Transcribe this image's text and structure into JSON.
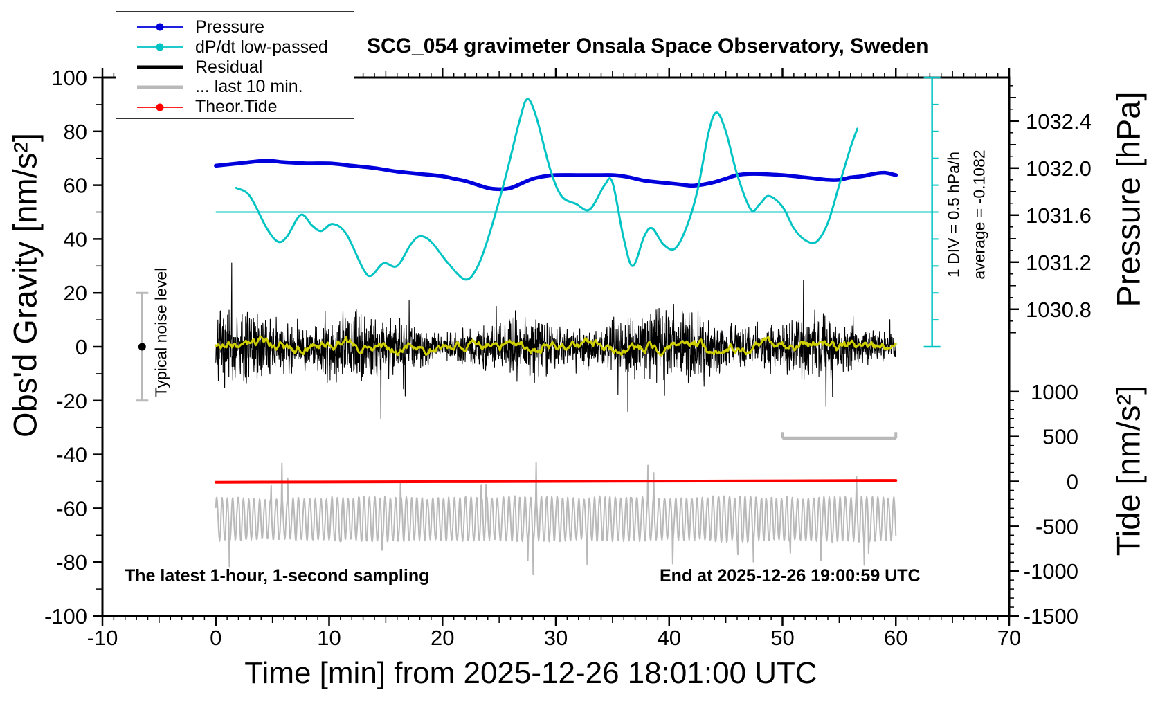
{
  "annotations": {
    "sampling_note": "The latest 1-hour, 1-second sampling",
    "end_note": "End at 2025-12-26 19:00:59 UTC",
    "div_note": "1 DIV = 0.5 hPa/h",
    "average_note": "average = -0.1082",
    "noise_label": "Typical noise level"
  },
  "legend": {
    "items": [
      {
        "label": "Pressure",
        "color": "#0000dd",
        "style": "line-dot"
      },
      {
        "label": "dP/dt low-passed",
        "color": "#00c3c3",
        "style": "line-dot"
      },
      {
        "label": "Residual",
        "color": "#000000",
        "style": "thick-line"
      },
      {
        "label": "... last 10 min.",
        "color": "#b9b9b9",
        "style": "thick-line"
      },
      {
        "label": "Theor.Tide",
        "color": "#ff0000",
        "style": "line-dot"
      }
    ]
  },
  "chart_data": {
    "type": "line",
    "title": "SCG_054 gravimeter Onsala Space Observatory, Sweden",
    "xlabel": "Time [min] from 2025-12-26 18:01:00 UTC",
    "x_range": [
      -10,
      70
    ],
    "x_ticks": [
      -10,
      0,
      10,
      20,
      30,
      40,
      50,
      60,
      70
    ],
    "x_minor_step": 1,
    "x_medium_step": 5,
    "gravity_axis": {
      "label": "Obs'd Gravity [nm/s²]",
      "range": [
        -100,
        100
      ],
      "tick_step": 20,
      "minor_step": 10
    },
    "pressure_axis": {
      "label": "Pressure [hPa]",
      "tick_labels": [
        1030.8,
        1031.2,
        1031.6,
        1032.0,
        1032.4
      ],
      "minor_step": 0.1,
      "map": {
        "hpa": 1031.6,
        "gravity": 48.9,
        "gravity_per_hpa": 43.7
      }
    },
    "tide_axis": {
      "label": "Tide [nm/s²]",
      "tick_labels": [
        1000,
        500,
        0,
        -500,
        -1000,
        -1500
      ],
      "minor_step": 100,
      "map": {
        "tide": 0,
        "gravity": -50,
        "gravity_per_unit": 0.033333
      }
    },
    "dpdt_scale": {
      "zero_gravity": 50,
      "gravity_per_hpa_h": 20,
      "ruler_x_min": 63.2,
      "div_hpa_h": 0.5,
      "average_hpa_h": -0.1082,
      "color": "#00c3c3"
    },
    "series": [
      {
        "name": "Pressure",
        "axis": "pressure",
        "unit": "hPa",
        "color": "#0000dd",
        "width": 5.5,
        "points": [
          [
            0,
            1032.02
          ],
          [
            2,
            1032.04
          ],
          [
            4,
            1032.06
          ],
          [
            5,
            1032.06
          ],
          [
            6,
            1032.05
          ],
          [
            8,
            1032.04
          ],
          [
            10,
            1032.04
          ],
          [
            12,
            1032.02
          ],
          [
            14,
            1032.0
          ],
          [
            16,
            1031.97
          ],
          [
            18,
            1031.95
          ],
          [
            20,
            1031.93
          ],
          [
            21,
            1031.91
          ],
          [
            22,
            1031.89
          ],
          [
            23,
            1031.86
          ],
          [
            24,
            1031.83
          ],
          [
            25,
            1031.82
          ],
          [
            26,
            1031.83
          ],
          [
            27,
            1031.87
          ],
          [
            28,
            1031.91
          ],
          [
            29,
            1031.93
          ],
          [
            30,
            1031.94
          ],
          [
            32,
            1031.94
          ],
          [
            34,
            1031.94
          ],
          [
            35,
            1031.94
          ],
          [
            36,
            1031.93
          ],
          [
            37,
            1031.91
          ],
          [
            38,
            1031.89
          ],
          [
            40,
            1031.87
          ],
          [
            41,
            1031.86
          ],
          [
            42,
            1031.85
          ],
          [
            43,
            1031.86
          ],
          [
            44,
            1031.88
          ],
          [
            45,
            1031.91
          ],
          [
            46,
            1031.94
          ],
          [
            47,
            1031.95
          ],
          [
            48,
            1031.95
          ],
          [
            50,
            1031.94
          ],
          [
            52,
            1031.92
          ],
          [
            53,
            1031.91
          ],
          [
            54,
            1031.9
          ],
          [
            55,
            1031.9
          ],
          [
            56,
            1031.92
          ],
          [
            57,
            1031.93
          ],
          [
            58,
            1031.95
          ],
          [
            59,
            1031.96
          ],
          [
            60,
            1031.94
          ]
        ]
      },
      {
        "name": "dP/dt low-passed",
        "axis": "dpdt",
        "unit": "hPa/h",
        "color": "#00c3c3",
        "width": 3,
        "points": [
          [
            1.8,
            0.45
          ],
          [
            3,
            0.3
          ],
          [
            4.5,
            -0.3
          ],
          [
            5.5,
            -0.55
          ],
          [
            6.3,
            -0.45
          ],
          [
            7.5,
            -0.05
          ],
          [
            8.5,
            -0.25
          ],
          [
            9.3,
            -0.35
          ],
          [
            10.3,
            -0.22
          ],
          [
            11.5,
            -0.4
          ],
          [
            13,
            -1.05
          ],
          [
            13.7,
            -1.18
          ],
          [
            14.8,
            -0.95
          ],
          [
            16,
            -1.0
          ],
          [
            17.2,
            -0.6
          ],
          [
            18,
            -0.45
          ],
          [
            19,
            -0.55
          ],
          [
            20.5,
            -0.95
          ],
          [
            22,
            -1.25
          ],
          [
            23,
            -1.05
          ],
          [
            24,
            -0.5
          ],
          [
            25.5,
            0.6
          ],
          [
            26.8,
            1.7
          ],
          [
            27.5,
            2.1
          ],
          [
            28.3,
            1.75
          ],
          [
            29.5,
            0.8
          ],
          [
            30.5,
            0.3
          ],
          [
            31.8,
            0.15
          ],
          [
            33,
            0.05
          ],
          [
            34.3,
            0.5
          ],
          [
            35,
            0.55
          ],
          [
            36,
            -0.5
          ],
          [
            36.8,
            -1.0
          ],
          [
            37.8,
            -0.45
          ],
          [
            38.5,
            -0.3
          ],
          [
            39.5,
            -0.6
          ],
          [
            40.5,
            -0.68
          ],
          [
            41.5,
            -0.3
          ],
          [
            42.5,
            0.4
          ],
          [
            43.5,
            1.5
          ],
          [
            44.2,
            1.85
          ],
          [
            45,
            1.5
          ],
          [
            46,
            0.7
          ],
          [
            47.2,
            0.05
          ],
          [
            48,
            0.15
          ],
          [
            48.8,
            0.3
          ],
          [
            50,
            0.1
          ],
          [
            51,
            -0.3
          ],
          [
            52,
            -0.52
          ],
          [
            53,
            -0.55
          ],
          [
            54,
            -0.2
          ],
          [
            55,
            0.5
          ],
          [
            56,
            1.2
          ],
          [
            56.6,
            1.55
          ]
        ]
      },
      {
        "name": "Residual",
        "axis": "gravity",
        "unit": "nm/s²",
        "color": "#000000",
        "width": 1.1,
        "noise": {
          "type": "spiky",
          "seed": 7,
          "n": 2600,
          "x_range": [
            0,
            60
          ],
          "center": 0,
          "sigma": 8,
          "spike_prob": 0.02,
          "clip": 36
        }
      },
      {
        "name": "Residual low-passed",
        "axis": "gravity",
        "unit": "nm/s²",
        "color": "#cfcf00",
        "width": 3,
        "noise": {
          "type": "smooth",
          "seed": 3,
          "n": 700,
          "x_range": [
            0,
            60
          ],
          "center": 0,
          "amp": 2.4
        }
      },
      {
        "name": "... last 10 min.",
        "axis": "gravity",
        "unit": "nm/s²",
        "color": "#b9b9b9",
        "width": 2,
        "noise": {
          "type": "osc",
          "seed": 11,
          "n": 1400,
          "x_range": [
            0,
            60
          ],
          "center": -64,
          "base_amp": 8,
          "max_extra": 14
        }
      },
      {
        "name": "Theor.Tide",
        "axis": "tide",
        "unit": "nm/s²",
        "color": "#ff0000",
        "width": 4,
        "points": [
          [
            0,
            -9
          ],
          [
            15,
            -5
          ],
          [
            30,
            0
          ],
          [
            45,
            5
          ],
          [
            60,
            11
          ]
        ]
      }
    ],
    "noise_marker": {
      "x_min": -6.5,
      "gravity_span": [
        -20,
        20
      ],
      "dot_gravity": 0,
      "color": "#b9b9b9"
    },
    "window_bar": {
      "x_from": 50,
      "x_to": 60,
      "gravity_y": -34,
      "color": "#b9b9b9"
    }
  }
}
